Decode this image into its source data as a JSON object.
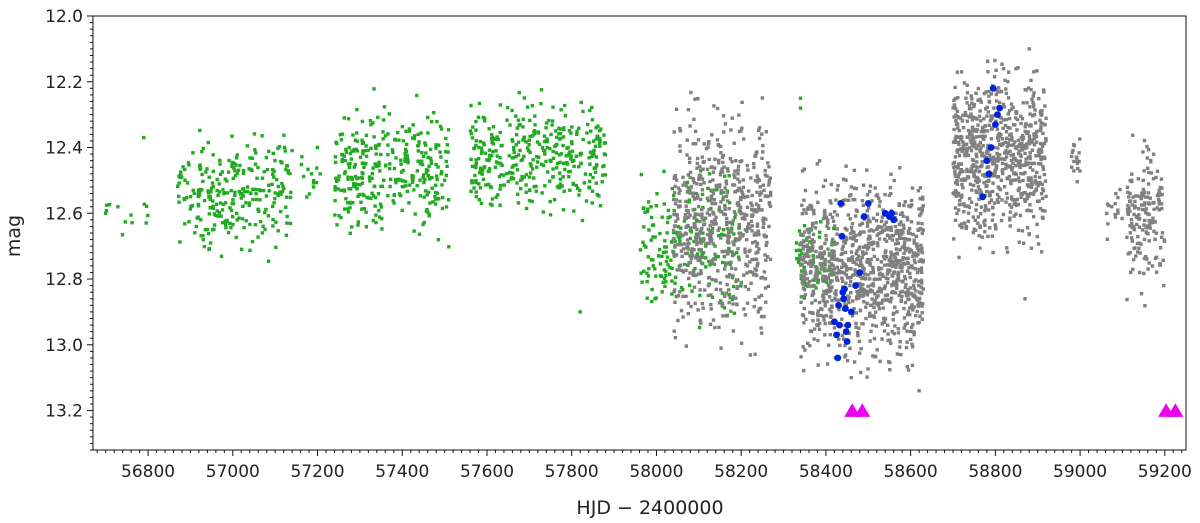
{
  "chart_data": {
    "type": "scatter",
    "xlabel": "HJD − 2400000",
    "ylabel": "mag",
    "xlim": [
      56670,
      59250
    ],
    "ylim": [
      13.32,
      12.0
    ],
    "y_inverted": true,
    "grid": false,
    "minor_ticks": true,
    "x_ticks": [
      56800,
      57000,
      57200,
      57400,
      57600,
      57800,
      58000,
      58200,
      58400,
      58600,
      58800,
      59000,
      59200
    ],
    "y_ticks": [
      12.0,
      12.2,
      12.4,
      12.6,
      12.8,
      13.0,
      13.2
    ],
    "series": [
      {
        "color": "#22aa22",
        "marker": "square",
        "clusters": [
          {
            "x": [
              56700,
              56800
            ],
            "y": [
              12.48,
              12.72
            ],
            "n": 12
          },
          {
            "x": [
              56870,
              57140
            ],
            "y": [
              12.3,
              12.78
            ],
            "n": 270
          },
          {
            "x": [
              57160,
              57210
            ],
            "y": [
              12.32,
              12.62
            ],
            "n": 14
          },
          {
            "x": [
              57240,
              57510
            ],
            "y": [
              12.2,
              12.74
            ],
            "n": 330
          },
          {
            "x": [
              57560,
              57880
            ],
            "y": [
              12.2,
              12.66
            ],
            "n": 380
          },
          {
            "x": [
              57960,
              58200
            ],
            "y": [
              12.38,
              13.0
            ],
            "n": 220
          },
          {
            "x": [
              58330,
              58420
            ],
            "y": [
              12.58,
              12.92
            ],
            "n": 70
          }
        ],
        "extra_points": [
          [
            56700,
            12.6
          ],
          [
            56790,
            12.37
          ],
          [
            57820,
            12.9
          ],
          [
            58340,
            12.25
          ],
          [
            58340,
            12.28
          ]
        ]
      },
      {
        "color": "#808080",
        "marker": "square",
        "clusters": [
          {
            "x": [
              58040,
              58270
            ],
            "y": [
              12.18,
              13.08
            ],
            "n": 620
          },
          {
            "x": [
              58340,
              58630
            ],
            "y": [
              12.4,
              13.14
            ],
            "n": 980
          },
          {
            "x": [
              58700,
              58920
            ],
            "y": [
              12.08,
              12.78
            ],
            "n": 760
          },
          {
            "x": [
              58980,
              59000
            ],
            "y": [
              12.3,
              12.58
            ],
            "n": 18
          },
          {
            "x": [
              59060,
              59100
            ],
            "y": [
              12.5,
              12.7
            ],
            "n": 15
          },
          {
            "x": [
              59110,
              59200
            ],
            "y": [
              12.3,
              12.94
            ],
            "n": 170
          }
        ],
        "extra_points": [
          [
            58620,
            13.14
          ],
          [
            58870,
            12.86
          ],
          [
            58460,
            13.1
          ],
          [
            58880,
            12.1
          ]
        ]
      },
      {
        "color": "#0022dd",
        "marker": "circle",
        "points": [
          [
            58420,
            12.93
          ],
          [
            58425,
            12.97
          ],
          [
            58428,
            13.04
          ],
          [
            58430,
            12.88
          ],
          [
            58432,
            12.94
          ],
          [
            58435,
            12.57
          ],
          [
            58438,
            12.67
          ],
          [
            58440,
            12.84
          ],
          [
            58442,
            12.86
          ],
          [
            58444,
            12.83
          ],
          [
            58446,
            12.89
          ],
          [
            58448,
            12.96
          ],
          [
            58450,
            12.99
          ],
          [
            58452,
            12.94
          ],
          [
            58460,
            12.9
          ],
          [
            58470,
            12.82
          ],
          [
            58480,
            12.78
          ],
          [
            58490,
            12.61
          ],
          [
            58500,
            12.57
          ],
          [
            58540,
            12.6
          ],
          [
            58550,
            12.61
          ],
          [
            58555,
            12.6
          ],
          [
            58560,
            12.62
          ],
          [
            58770,
            12.55
          ],
          [
            58780,
            12.44
          ],
          [
            58785,
            12.48
          ],
          [
            58790,
            12.4
          ],
          [
            58795,
            12.22
          ],
          [
            58800,
            12.33
          ],
          [
            58805,
            12.3
          ],
          [
            58810,
            12.28
          ]
        ]
      },
      {
        "color": "#ee00ee",
        "marker": "triangle",
        "points": [
          [
            58462,
            13.2
          ],
          [
            58486,
            13.2
          ],
          [
            59203,
            13.2
          ],
          [
            59225,
            13.2
          ]
        ]
      }
    ]
  }
}
